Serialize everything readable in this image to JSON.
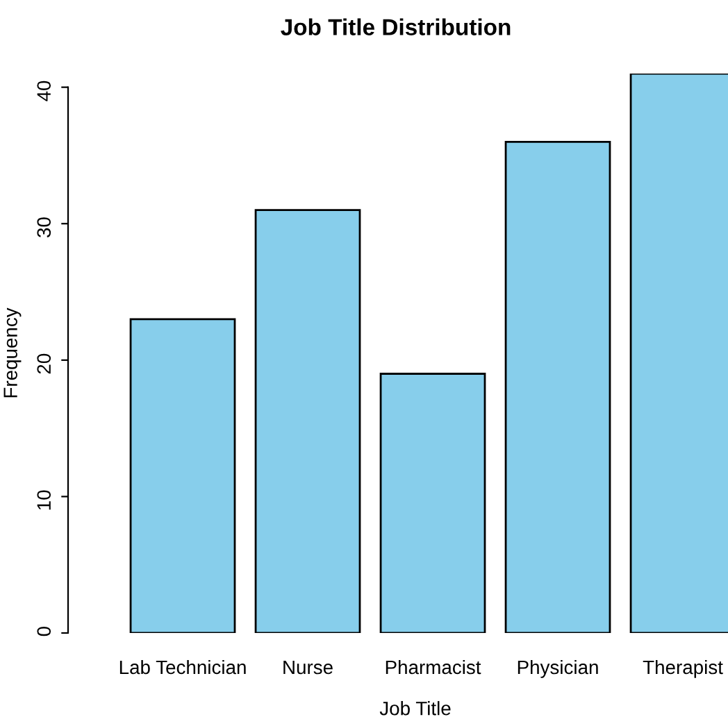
{
  "chart_data": {
    "type": "bar",
    "title": "Job Title Distribution",
    "xlabel": "Job Title",
    "ylabel": "Frequency",
    "categories": [
      "Lab Technician",
      "Nurse",
      "Pharmacist",
      "Physician",
      "Therapist"
    ],
    "values": [
      23,
      31,
      19,
      36,
      41
    ],
    "color": "#87ceeb",
    "ylim": [
      0,
      41
    ],
    "yticks": [
      0,
      10,
      20,
      30,
      40
    ],
    "grid": false,
    "legend": false
  }
}
